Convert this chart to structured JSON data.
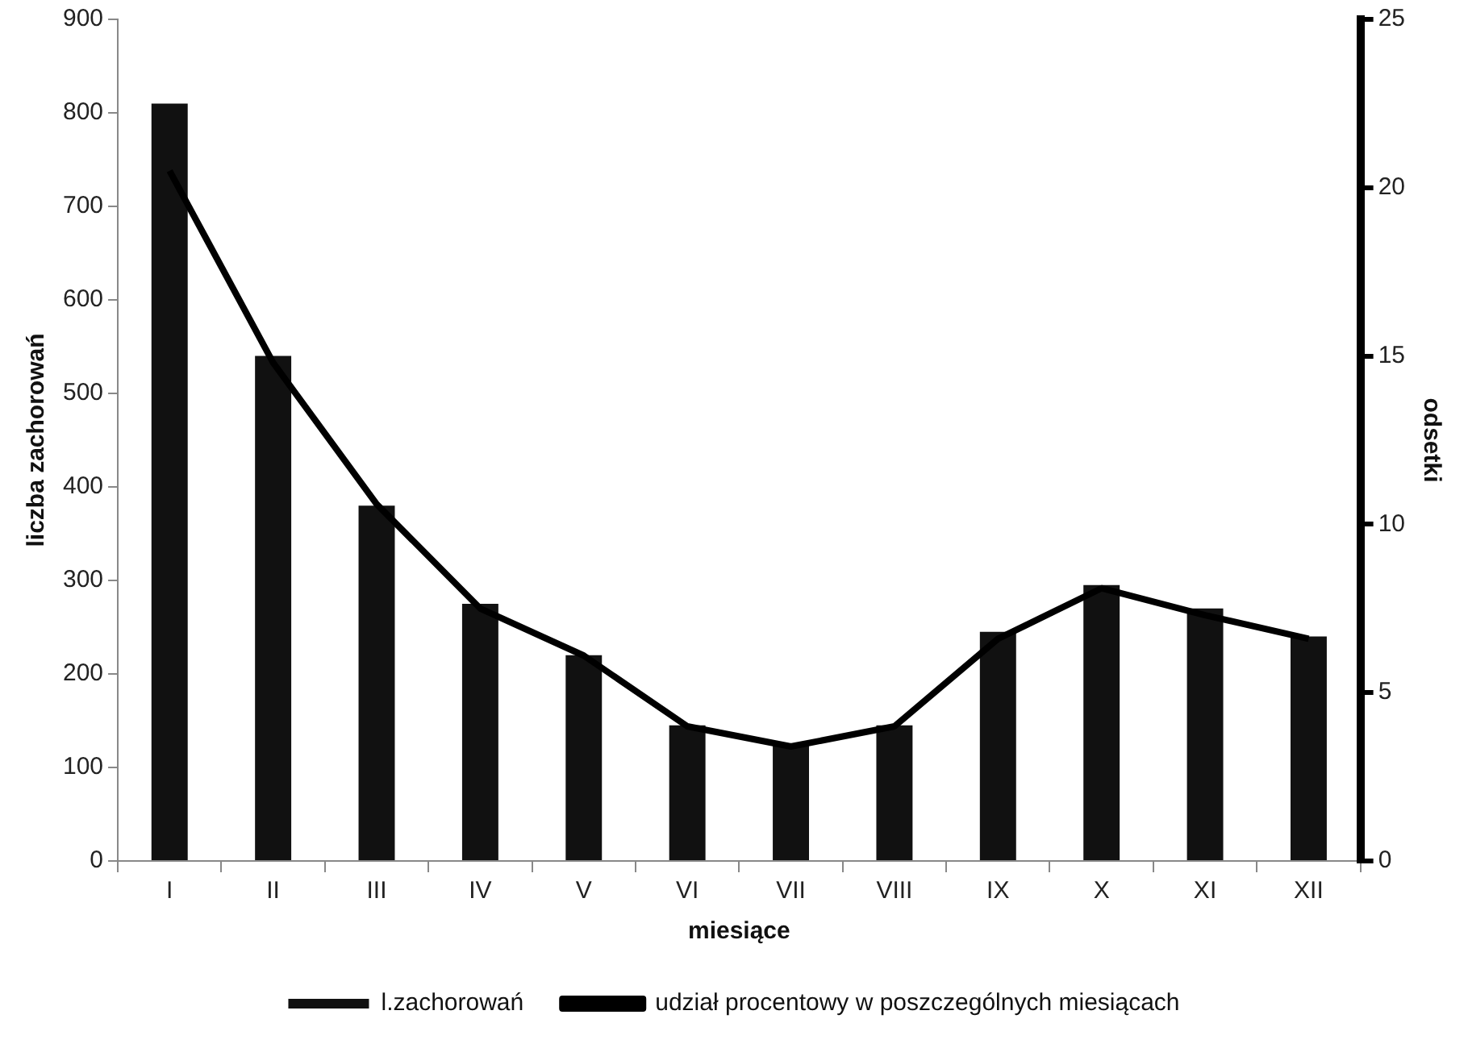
{
  "chart_data": {
    "type": "bar",
    "xlabel": "miesiące",
    "ylabel": "liczba zachorowań",
    "y2label": "odsetki",
    "categories": [
      "I",
      "II",
      "III",
      "IV",
      "V",
      "VI",
      "VII",
      "VIII",
      "IX",
      "X",
      "XI",
      "XII"
    ],
    "series": [
      {
        "name": "l.zachorowań",
        "color": "#111111",
        "values": [
          810,
          540,
          380,
          275,
          220,
          145,
          125,
          145,
          245,
          295,
          270,
          240
        ]
      },
      {
        "name": "udział procentowy w poszczególnych miesiącach",
        "type": "line",
        "axis": "y2",
        "color": "#000000",
        "values": [
          20.5,
          14.8,
          10.6,
          7.5,
          6.1,
          4.0,
          3.4,
          4.0,
          6.6,
          8.1,
          7.3,
          6.6
        ]
      }
    ],
    "ylim": [
      0,
      900
    ],
    "yticks": [
      0,
      100,
      200,
      300,
      400,
      500,
      600,
      700,
      800,
      900
    ],
    "y2lim": [
      0,
      25
    ],
    "y2ticks": [
      0,
      5,
      10,
      15,
      20,
      25
    ],
    "grid": false,
    "legend": "bottom",
    "marker": "none",
    "line_style": "solid"
  }
}
